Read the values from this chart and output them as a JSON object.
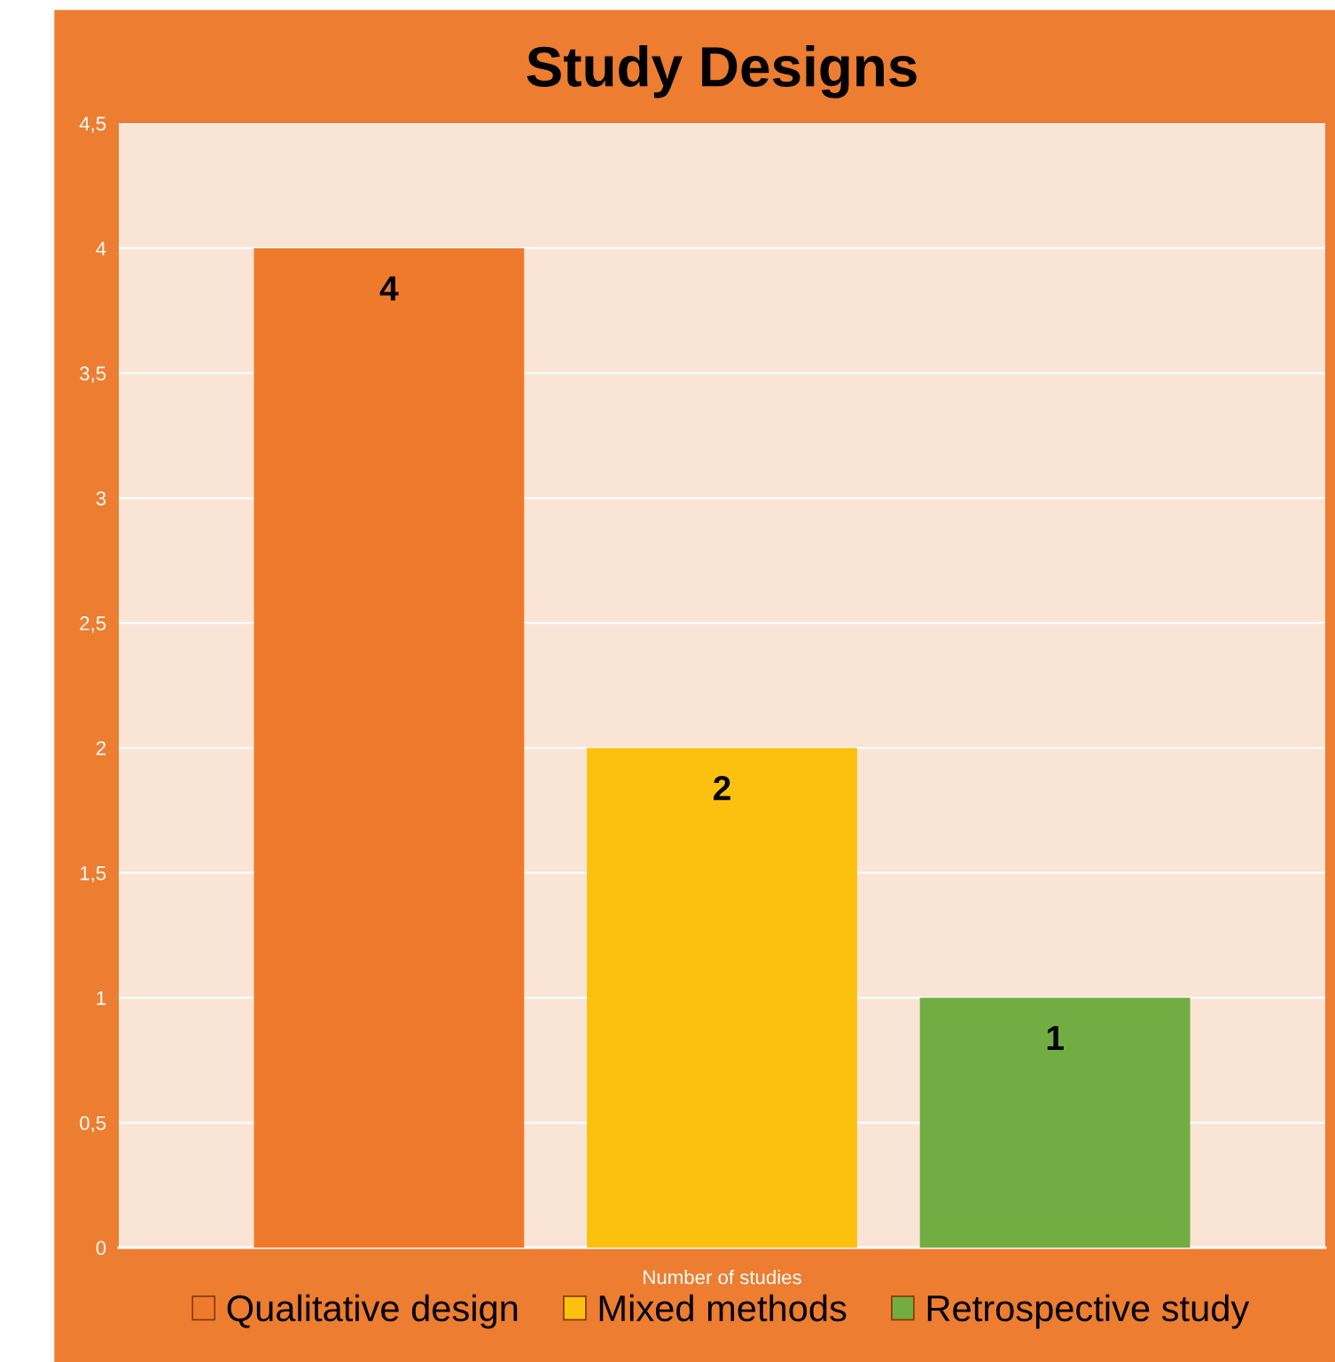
{
  "chart_data": {
    "type": "bar",
    "title": "Study Designs",
    "categories": [
      "Number of studies"
    ],
    "series": [
      {
        "name": "Qualitative design",
        "color": "#f07a2c",
        "values": [
          4
        ]
      },
      {
        "name": "Mixed methods",
        "color": "#fcc10f",
        "values": [
          2
        ]
      },
      {
        "name": "Retrospective study",
        "color": "#72ad43",
        "values": [
          1
        ]
      }
    ],
    "ylim": [
      0,
      4.5
    ],
    "yticks": [
      0,
      {
        "value": 0.5,
        "label": "0,5"
      },
      1,
      {
        "value": 1.5,
        "label": "1,5"
      },
      2,
      {
        "value": 2.5,
        "label": "2,5"
      },
      3,
      {
        "value": 3.5,
        "label": "3,5"
      },
      4,
      {
        "value": 4.5,
        "label": "4,5"
      }
    ],
    "grid": "y",
    "legend": "bottom",
    "data_labels": true
  }
}
